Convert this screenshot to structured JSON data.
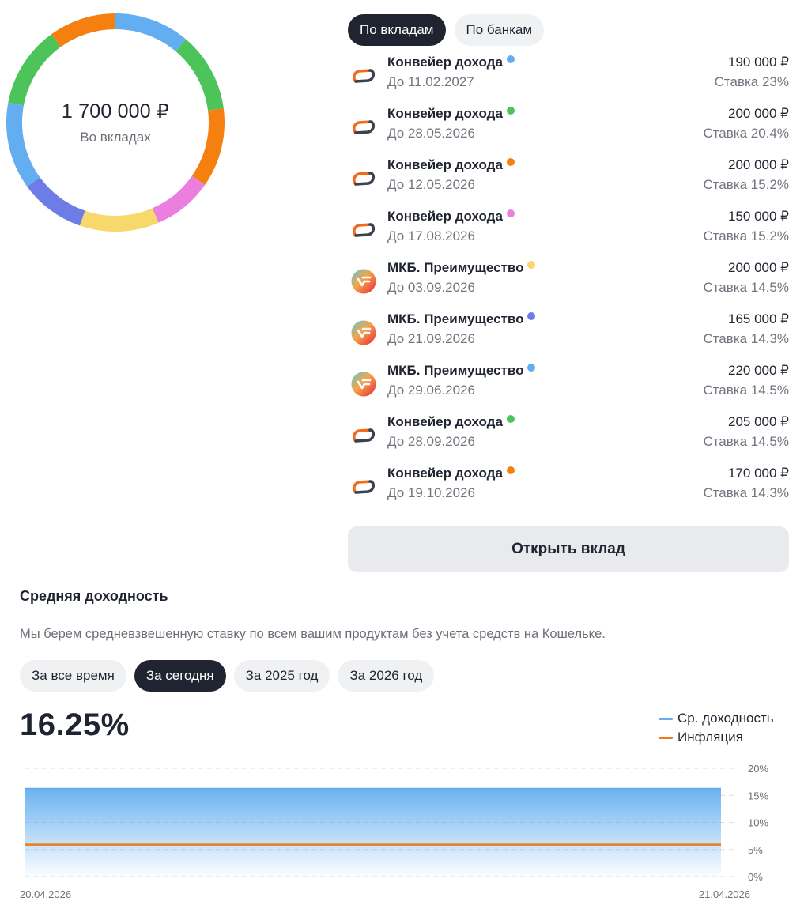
{
  "summary": {
    "total": "1 700 000 ₽",
    "caption": "Во вкладах"
  },
  "view_tabs": [
    {
      "label": "По вкладам",
      "active": true
    },
    {
      "label": "По банкам",
      "active": false
    }
  ],
  "deposits": [
    {
      "name": "Конвейер дохода",
      "bank_logo": "conveyor-bank-logo",
      "dot_color": "#63aef0",
      "date": "До 11.02.2027",
      "amount": "190 000 ₽",
      "amount_value": 190000,
      "rate": "Ставка 23%"
    },
    {
      "name": "Конвейер дохода",
      "bank_logo": "conveyor-bank-logo",
      "dot_color": "#4cc45a",
      "date": "До 28.05.2026",
      "amount": "200 000 ₽",
      "amount_value": 200000,
      "rate": "Ставка 20.4%"
    },
    {
      "name": "Конвейер дохода",
      "bank_logo": "conveyor-bank-logo",
      "dot_color": "#f5800f",
      "date": "До 12.05.2026",
      "amount": "200 000 ₽",
      "amount_value": 200000,
      "rate": "Ставка 15.2%"
    },
    {
      "name": "Конвейер дохода",
      "bank_logo": "conveyor-bank-logo",
      "dot_color": "#ea7fe0",
      "date": "До 17.08.2026",
      "amount": "150 000 ₽",
      "amount_value": 150000,
      "rate": "Ставка 15.2%"
    },
    {
      "name": "МКБ. Преимущество",
      "bank_logo": "mkb-bank-logo",
      "dot_color": "#f7d86a",
      "date": "До 03.09.2026",
      "amount": "200 000 ₽",
      "amount_value": 200000,
      "rate": "Ставка 14.5%"
    },
    {
      "name": "МКБ. Преимущество",
      "bank_logo": "mkb-bank-logo",
      "dot_color": "#6e7ce8",
      "date": "До 21.09.2026",
      "amount": "165 000 ₽",
      "amount_value": 165000,
      "rate": "Ставка 14.3%"
    },
    {
      "name": "МКБ. Преимущество",
      "bank_logo": "mkb-bank-logo",
      "dot_color": "#63aef0",
      "date": "До 29.06.2026",
      "amount": "220 000 ₽",
      "amount_value": 220000,
      "rate": "Ставка 14.5%"
    },
    {
      "name": "Конвейер дохода",
      "bank_logo": "conveyor-bank-logo",
      "dot_color": "#4cc45a",
      "date": "До 28.09.2026",
      "amount": "205 000 ₽",
      "amount_value": 205000,
      "rate": "Ставка 14.5%"
    },
    {
      "name": "Конвейер дохода",
      "bank_logo": "conveyor-bank-logo",
      "dot_color": "#f5800f",
      "date": "До 19.10.2026",
      "amount": "170 000 ₽",
      "amount_value": 170000,
      "rate": "Ставка 14.3%"
    }
  ],
  "open_button": {
    "label": "Открыть вклад"
  },
  "yield": {
    "title": "Средняя доходность",
    "description": "Мы берем средневзвешенную ставку по всем вашим продуктам без учета средств на Кошельке.",
    "periods": [
      {
        "label": "За все время",
        "active": false
      },
      {
        "label": "За сегодня",
        "active": true
      },
      {
        "label": "За 2025 год",
        "active": false
      },
      {
        "label": "За 2026 год",
        "active": false
      }
    ],
    "average": "16.25%"
  },
  "chart_data": {
    "type": "area",
    "x": [
      "20.04.2026",
      "21.04.2026"
    ],
    "series": [
      {
        "name": "Ср. доходность",
        "values": [
          16.25,
          16.25
        ],
        "color": "#63aef0"
      },
      {
        "name": "Инфляция",
        "values": [
          5.9,
          5.9
        ],
        "color": "#f07a1a"
      }
    ],
    "y_ticks": [
      "0%",
      "5%",
      "10%",
      "15%",
      "20%"
    ],
    "ylim": [
      0,
      20
    ],
    "y_axis_side": "right",
    "grid": true,
    "legend_placement": "top-right"
  }
}
